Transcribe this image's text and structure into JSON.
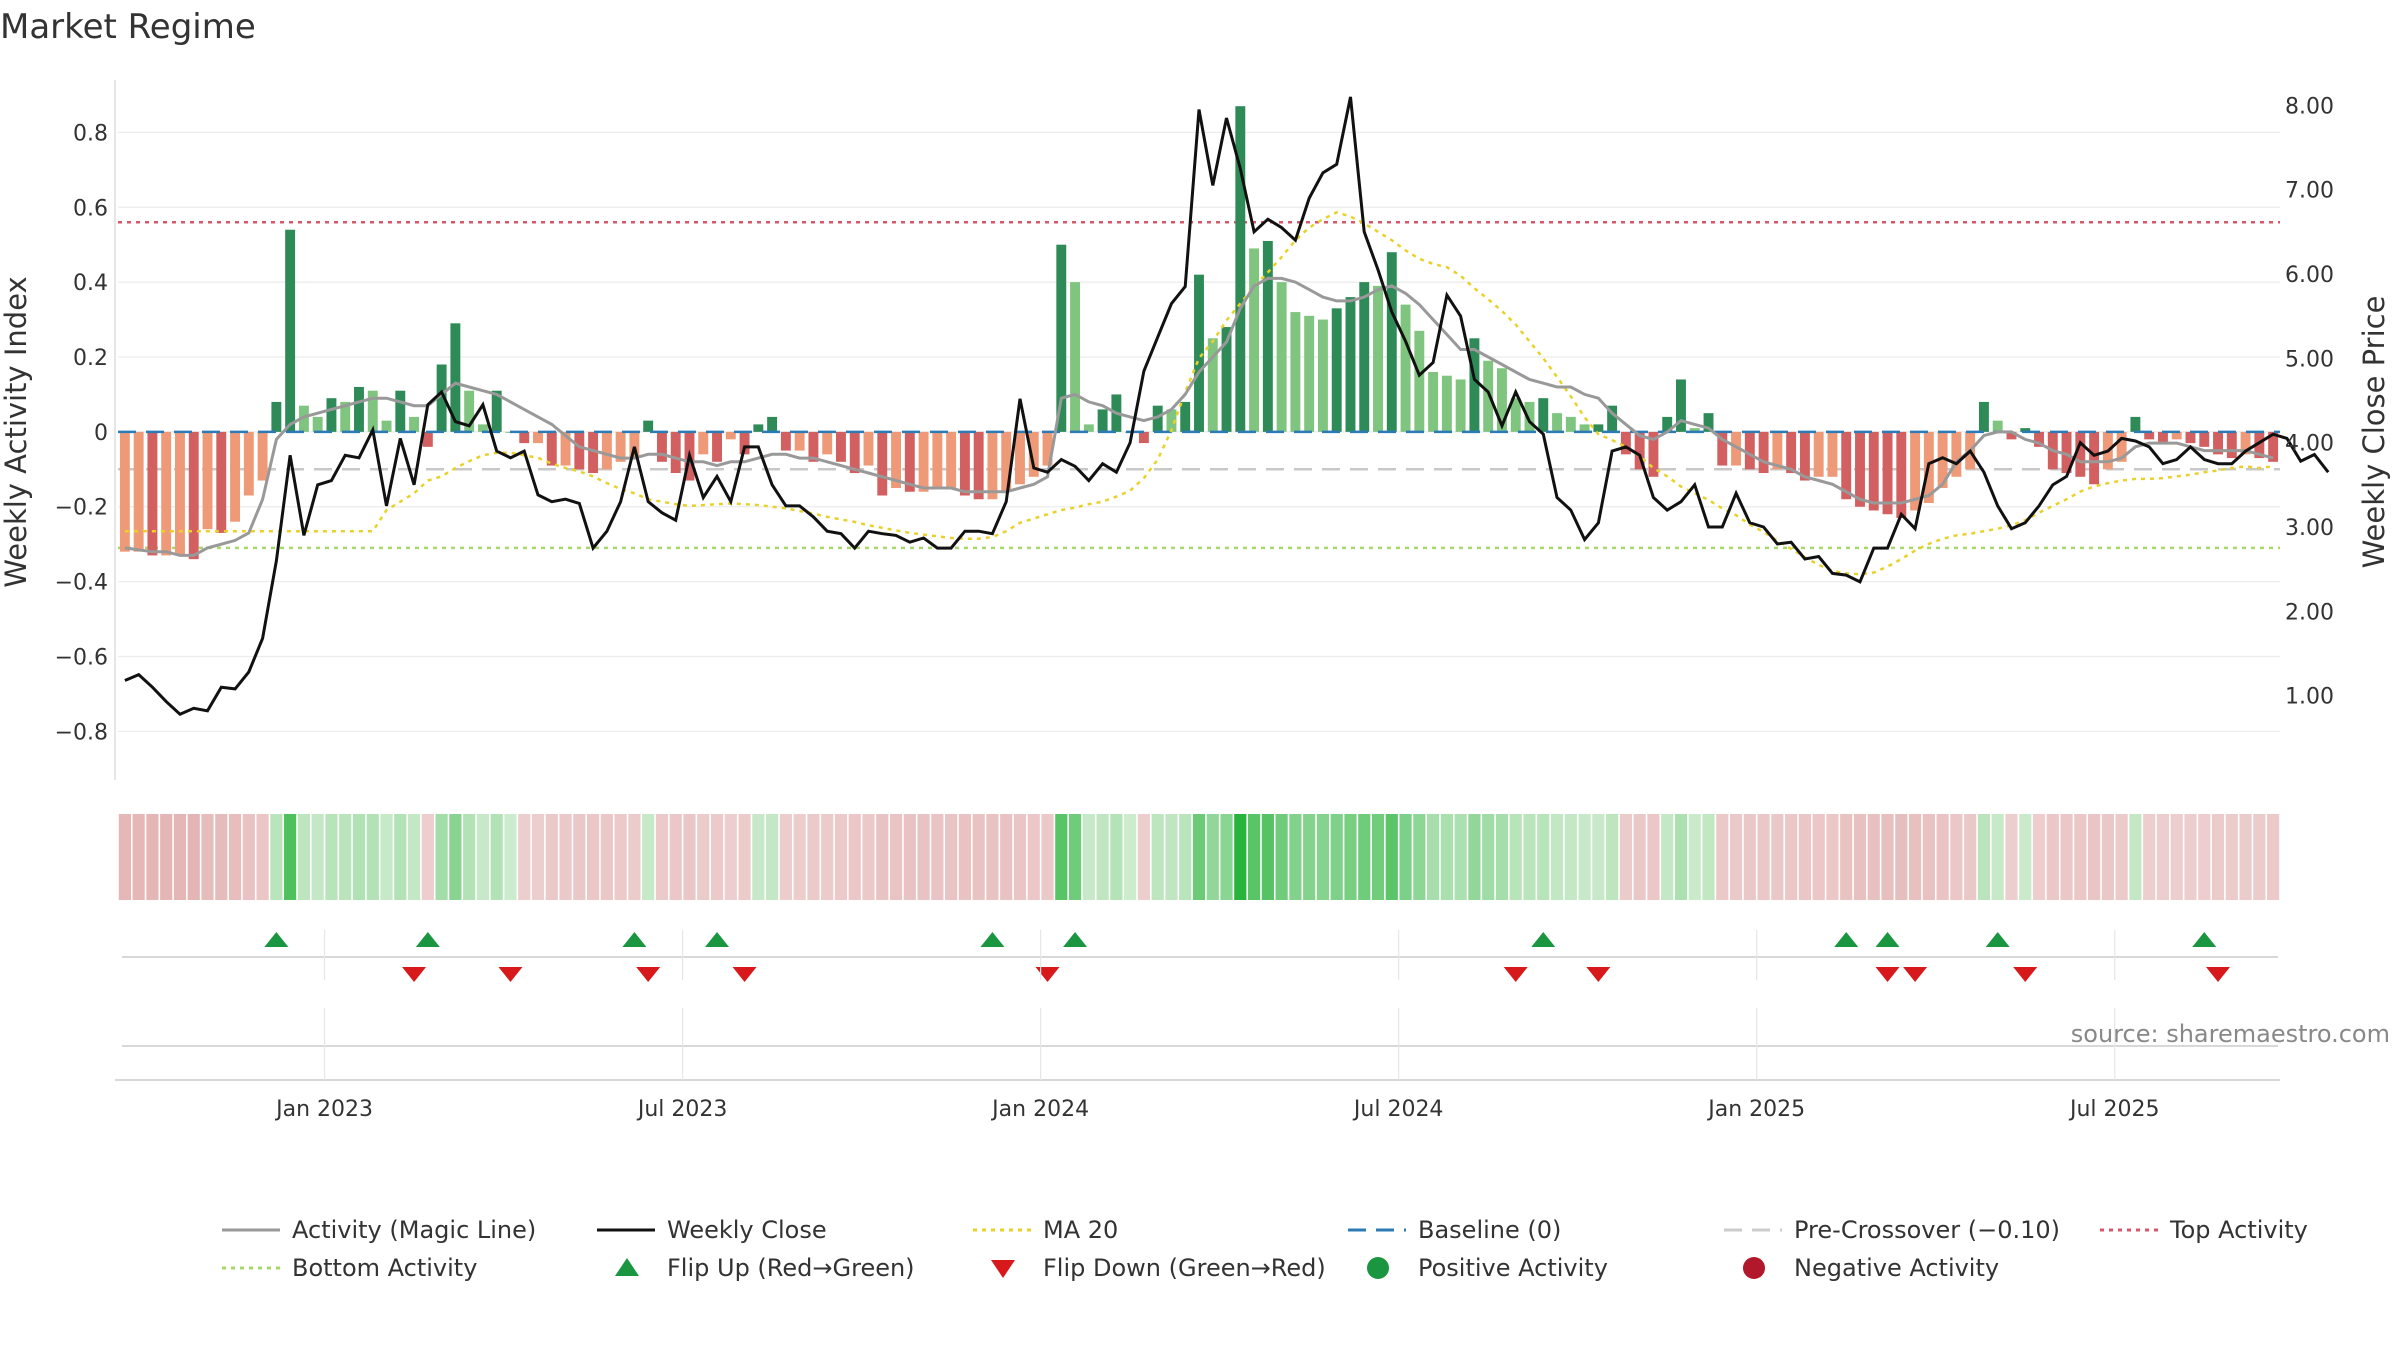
{
  "chart_data": {
    "type": "bar",
    "title": "Market Regime",
    "ylabel_left": "Weekly Activity Index",
    "ylabel_right": "Weekly Close Price",
    "ylim_left": [
      -0.93,
      0.94
    ],
    "ylim_right": [
      0.0,
      8.3
    ],
    "left_ticks": [
      "−0.8",
      "−0.6",
      "−0.4",
      "−0.2",
      "0",
      "0.2",
      "0.4",
      "0.6",
      "0.8"
    ],
    "left_tick_values": [
      -0.8,
      -0.6,
      -0.4,
      -0.2,
      0,
      0.2,
      0.4,
      0.6,
      0.8
    ],
    "right_ticks": [
      "1.00",
      "2.00",
      "3.00",
      "4.00",
      "5.00",
      "6.00",
      "7.00",
      "8.00"
    ],
    "right_tick_values": [
      1,
      2,
      3,
      4,
      5,
      6,
      7,
      8
    ],
    "x_tick_labels": [
      "Jan 2023",
      "Jul 2023",
      "Jan 2024",
      "Jul 2024",
      "Jan 2025",
      "Jul 2025"
    ],
    "x_tick_weeks": [
      14.5,
      40.5,
      66.5,
      92.5,
      118.5,
      144.5
    ],
    "week_count": 157,
    "start_week": "2022-10-03",
    "top_activity": 0.56,
    "bottom_activity": -0.31,
    "baseline": 0,
    "pre_crossover": -0.1,
    "activity": [
      -0.32,
      -0.32,
      -0.33,
      -0.33,
      -0.33,
      -0.34,
      -0.26,
      -0.27,
      -0.24,
      -0.17,
      -0.13,
      0.08,
      0.54,
      0.07,
      0.04,
      0.09,
      0.08,
      0.12,
      0.11,
      0.03,
      0.11,
      0.04,
      -0.04,
      0.18,
      0.29,
      0.11,
      0.02,
      0.11,
      0.0,
      -0.03,
      -0.03,
      -0.09,
      -0.09,
      -0.1,
      -0.11,
      -0.1,
      -0.08,
      -0.07,
      0.03,
      -0.08,
      -0.11,
      -0.13,
      -0.06,
      -0.08,
      -0.02,
      -0.06,
      0.02,
      0.04,
      -0.05,
      -0.05,
      -0.08,
      -0.06,
      -0.08,
      -0.11,
      -0.09,
      -0.17,
      -0.15,
      -0.16,
      -0.16,
      -0.15,
      -0.15,
      -0.17,
      -0.18,
      -0.18,
      -0.16,
      -0.14,
      -0.12,
      -0.09,
      0.5,
      0.4,
      0.02,
      0.06,
      0.1,
      0.0,
      -0.03,
      0.07,
      0.06,
      0.08,
      0.42,
      0.25,
      0.28,
      0.87,
      0.49,
      0.51,
      0.4,
      0.32,
      0.31,
      0.3,
      0.33,
      0.36,
      0.4,
      0.39,
      0.48,
      0.34,
      0.27,
      0.16,
      0.15,
      0.14,
      0.25,
      0.19,
      0.17,
      0.09,
      0.08,
      0.09,
      0.05,
      0.04,
      0.02,
      0.02,
      0.07,
      -0.06,
      -0.1,
      -0.12,
      0.04,
      0.14,
      0.01,
      0.05,
      -0.09,
      -0.09,
      -0.1,
      -0.11,
      -0.1,
      -0.11,
      -0.13,
      -0.12,
      -0.12,
      -0.18,
      -0.2,
      -0.21,
      -0.22,
      -0.23,
      -0.21,
      -0.19,
      -0.15,
      -0.12,
      -0.1,
      0.08,
      0.03,
      -0.02,
      0.01,
      -0.04,
      -0.1,
      -0.11,
      -0.12,
      -0.14,
      -0.1,
      -0.08,
      0.04,
      -0.02,
      -0.03,
      -0.02,
      -0.03,
      -0.04,
      -0.06,
      -0.07,
      -0.06,
      -0.07,
      -0.08
    ],
    "magic_line": [
      -0.31,
      -0.315,
      -0.32,
      -0.32,
      -0.33,
      -0.33,
      -0.31,
      -0.3,
      -0.29,
      -0.27,
      -0.18,
      -0.02,
      0.02,
      0.04,
      0.05,
      0.06,
      0.07,
      0.08,
      0.09,
      0.09,
      0.08,
      0.07,
      0.07,
      0.1,
      0.13,
      0.12,
      0.11,
      0.1,
      0.08,
      0.06,
      0.04,
      0.02,
      -0.01,
      -0.04,
      -0.05,
      -0.06,
      -0.07,
      -0.07,
      -0.06,
      -0.06,
      -0.07,
      -0.08,
      -0.08,
      -0.09,
      -0.08,
      -0.08,
      -0.07,
      -0.06,
      -0.06,
      -0.07,
      -0.07,
      -0.08,
      -0.09,
      -0.1,
      -0.11,
      -0.12,
      -0.13,
      -0.14,
      -0.15,
      -0.15,
      -0.15,
      -0.16,
      -0.16,
      -0.16,
      -0.16,
      -0.15,
      -0.14,
      -0.12,
      0.09,
      0.1,
      0.08,
      0.07,
      0.05,
      0.04,
      0.03,
      0.04,
      0.06,
      0.1,
      0.16,
      0.2,
      0.24,
      0.33,
      0.39,
      0.41,
      0.41,
      0.4,
      0.38,
      0.36,
      0.35,
      0.35,
      0.36,
      0.38,
      0.39,
      0.37,
      0.34,
      0.3,
      0.26,
      0.22,
      0.22,
      0.2,
      0.18,
      0.16,
      0.14,
      0.13,
      0.12,
      0.12,
      0.1,
      0.09,
      0.05,
      0.02,
      -0.01,
      -0.02,
      0.0,
      0.03,
      0.02,
      0.01,
      -0.02,
      -0.04,
      -0.06,
      -0.08,
      -0.09,
      -0.1,
      -0.12,
      -0.13,
      -0.14,
      -0.16,
      -0.18,
      -0.19,
      -0.19,
      -0.19,
      -0.18,
      -0.17,
      -0.14,
      -0.08,
      -0.05,
      -0.01,
      0.0,
      0.0,
      -0.02,
      -0.03,
      -0.05,
      -0.06,
      -0.08,
      -0.08,
      -0.08,
      -0.07,
      -0.04,
      -0.03,
      -0.03,
      -0.03,
      -0.04,
      -0.05,
      -0.05,
      -0.05,
      -0.05,
      -0.06,
      -0.07
    ],
    "weekly_close": [
      1.18,
      1.25,
      1.1,
      0.93,
      0.78,
      0.85,
      0.82,
      1.1,
      1.08,
      1.28,
      1.68,
      2.6,
      3.85,
      2.9,
      3.5,
      3.55,
      3.85,
      3.82,
      4.15,
      3.25,
      4.05,
      3.5,
      4.45,
      4.6,
      4.25,
      4.2,
      4.45,
      3.9,
      3.82,
      3.9,
      3.38,
      3.3,
      3.33,
      3.28,
      2.75,
      2.95,
      3.3,
      3.95,
      3.3,
      3.17,
      3.08,
      3.85,
      3.35,
      3.6,
      3.3,
      3.95,
      3.95,
      3.5,
      3.25,
      3.25,
      3.12,
      2.95,
      2.92,
      2.75,
      2.95,
      2.92,
      2.9,
      2.82,
      2.87,
      2.75,
      2.75,
      2.95,
      2.95,
      2.92,
      3.3,
      4.52,
      3.7,
      3.65,
      3.8,
      3.72,
      3.55,
      3.75,
      3.65,
      4.0,
      4.85,
      5.25,
      5.65,
      5.85,
      7.95,
      7.05,
      7.85,
      7.25,
      6.5,
      6.65,
      6.55,
      6.4,
      6.9,
      7.2,
      7.3,
      8.1,
      6.5,
      6.05,
      5.55,
      5.2,
      4.8,
      4.95,
      5.75,
      5.5,
      4.75,
      4.6,
      4.2,
      4.6,
      4.25,
      4.1,
      3.35,
      3.2,
      2.85,
      3.05,
      3.9,
      3.95,
      3.85,
      3.35,
      3.2,
      3.3,
      3.5,
      3.0,
      3.0,
      3.4,
      3.05,
      3.0,
      2.8,
      2.82,
      2.62,
      2.65,
      2.45,
      2.43,
      2.35,
      2.75,
      2.75,
      3.15,
      2.98,
      3.75,
      3.82,
      3.75,
      3.9,
      3.65,
      3.25,
      2.98,
      3.05,
      3.25,
      3.5,
      3.6,
      4.0,
      3.85,
      3.9,
      4.05,
      4.02,
      3.95,
      3.75,
      3.8,
      3.95,
      3.8,
      3.75,
      3.75,
      3.9,
      4.0,
      4.1,
      4.05,
      3.78,
      3.86,
      3.65
    ],
    "ma20": [
      2.95,
      2.95,
      2.95,
      2.95,
      2.95,
      2.95,
      2.95,
      2.95,
      2.95,
      2.95,
      2.95,
      2.95,
      2.95,
      2.95,
      2.95,
      2.95,
      2.95,
      2.95,
      2.95,
      3.2,
      3.3,
      3.4,
      3.55,
      3.6,
      3.7,
      3.78,
      3.85,
      3.88,
      3.88,
      3.85,
      3.82,
      3.75,
      3.7,
      3.66,
      3.6,
      3.52,
      3.45,
      3.4,
      3.33,
      3.3,
      3.27,
      3.25,
      3.26,
      3.27,
      3.28,
      3.27,
      3.26,
      3.24,
      3.22,
      3.19,
      3.16,
      3.12,
      3.09,
      3.06,
      3.02,
      2.99,
      2.96,
      2.93,
      2.91,
      2.89,
      2.87,
      2.86,
      2.86,
      2.88,
      2.95,
      3.05,
      3.1,
      3.15,
      3.2,
      3.23,
      3.27,
      3.3,
      3.36,
      3.43,
      3.58,
      3.8,
      4.15,
      4.6,
      5.0,
      5.2,
      5.45,
      5.65,
      5.85,
      6.02,
      6.2,
      6.4,
      6.55,
      6.65,
      6.73,
      6.68,
      6.6,
      6.5,
      6.4,
      6.28,
      6.18,
      6.12,
      6.08,
      5.98,
      5.83,
      5.7,
      5.56,
      5.4,
      5.2,
      5.0,
      4.78,
      4.55,
      4.3,
      4.1,
      4.03,
      3.95,
      3.84,
      3.7,
      3.6,
      3.48,
      3.4,
      3.32,
      3.22,
      3.14,
      3.03,
      2.94,
      2.84,
      2.74,
      2.64,
      2.55,
      2.48,
      2.45,
      2.44,
      2.46,
      2.53,
      2.62,
      2.72,
      2.8,
      2.86,
      2.9,
      2.92,
      2.95,
      2.98,
      3.02,
      3.08,
      3.17,
      3.25,
      3.33,
      3.42,
      3.48,
      3.52,
      3.55,
      3.57,
      3.57,
      3.58,
      3.6,
      3.62,
      3.65,
      3.67,
      3.7,
      3.72,
      3.7,
      3.72
    ],
    "flip_up_weeks": [
      11,
      22,
      37,
      43,
      63,
      69,
      103,
      125,
      128,
      136,
      151
    ],
    "flip_down_weeks": [
      21,
      28,
      38,
      45,
      67,
      101,
      107,
      128,
      130,
      138,
      152
    ],
    "source": "source: sharemaestro.com",
    "legend": [
      {
        "label": "Activity (Magic Line)",
        "kind": "solid",
        "color": "#999999"
      },
      {
        "label": "Weekly Close",
        "kind": "solid",
        "color": "#111111"
      },
      {
        "label": "MA 20",
        "kind": "dotted",
        "color": "#e8d22a"
      },
      {
        "label": "Baseline (0)",
        "kind": "dashed",
        "color": "#2c7bb6"
      },
      {
        "label": "Pre-Crossover (−0.10)",
        "kind": "dashed",
        "color": "#cccccc"
      },
      {
        "label": "Top Activity",
        "kind": "dotted",
        "color": "#d9576b"
      },
      {
        "label": "Bottom Activity",
        "kind": "dotted",
        "color": "#a6d96a"
      },
      {
        "label": "Flip Up (Red→Green)",
        "kind": "tri-up",
        "color": "#1a9641"
      },
      {
        "label": "Flip Down (Green→Red)",
        "kind": "tri-down",
        "color": "#d7191c"
      },
      {
        "label": "Positive Activity",
        "kind": "circle",
        "color": "#1a9641"
      },
      {
        "label": "Negative Activity",
        "kind": "circle",
        "color": "#b2182b"
      }
    ],
    "colors": {
      "pos_dark": "#2e8b57",
      "pos_light": "#7fc47f",
      "neg_dark": "#d26060",
      "neg_light": "#ee9a78",
      "close": "#111111",
      "magic": "#999999",
      "ma": "#e8d22a",
      "baseline": "#2c7bb6",
      "precross": "#c8c8c8",
      "top": "#d9576b",
      "bottom": "#a6d96a",
      "flip_up": "#1a9641",
      "flip_down": "#d7191c"
    }
  }
}
